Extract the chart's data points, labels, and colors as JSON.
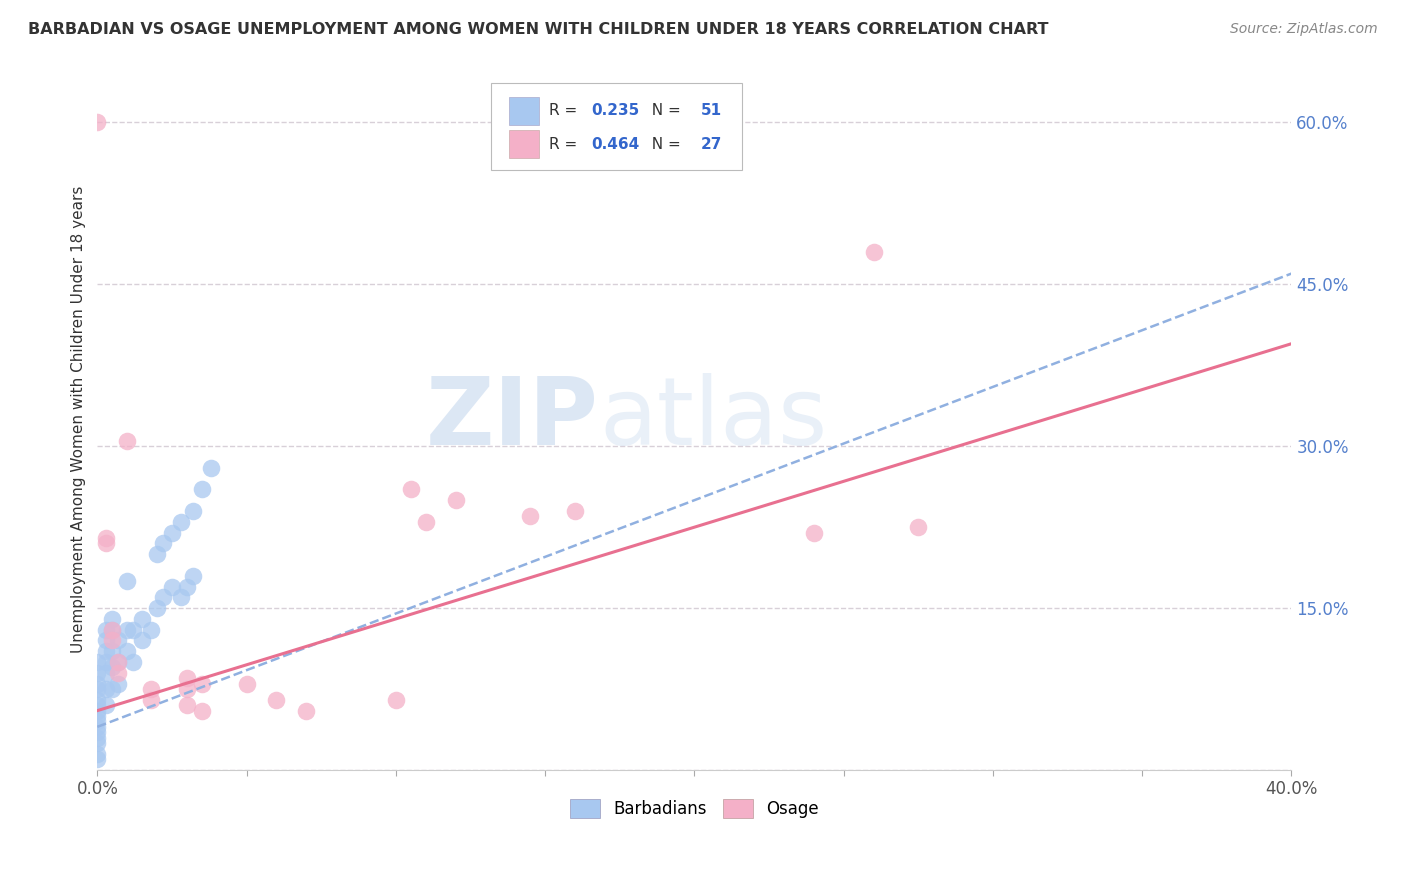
{
  "title": "BARBADIAN VS OSAGE UNEMPLOYMENT AMONG WOMEN WITH CHILDREN UNDER 18 YEARS CORRELATION CHART",
  "source": "Source: ZipAtlas.com",
  "ylabel": "Unemployment Among Women with Children Under 18 years",
  "xlim": [
    0.0,
    0.4
  ],
  "ylim": [
    0.0,
    0.65
  ],
  "xticks": [
    0.0,
    0.05,
    0.1,
    0.15,
    0.2,
    0.25,
    0.3,
    0.35,
    0.4
  ],
  "xticklabels": [
    "0.0%",
    "",
    "",
    "",
    "",
    "",
    "",
    "",
    "40.0%"
  ],
  "yticks_right": [
    0.0,
    0.15,
    0.3,
    0.45,
    0.6
  ],
  "ytick_right_labels": [
    "",
    "15.0%",
    "30.0%",
    "45.0%",
    "60.0%"
  ],
  "watermark_zip": "ZIP",
  "watermark_atlas": "atlas",
  "legend_r1": "0.235",
  "legend_n1": "51",
  "legend_r2": "0.464",
  "legend_n2": "27",
  "legend_bottom_blue": "Barbadians",
  "legend_bottom_pink": "Osage",
  "blue_color": "#A8C8F0",
  "pink_color": "#F4B0C8",
  "blue_edge": "#7090C8",
  "pink_edge": "#E07090",
  "blue_line_color": "#90B0E0",
  "pink_line_color": "#E87090",
  "grid_color": "#D8D0D8",
  "barbadians_x": [
    0.0,
    0.0,
    0.0,
    0.0,
    0.0,
    0.0,
    0.0,
    0.0,
    0.0,
    0.0,
    0.0,
    0.0,
    0.0,
    0.0,
    0.0,
    0.003,
    0.003,
    0.003,
    0.003,
    0.003,
    0.003,
    0.003,
    0.005,
    0.005,
    0.005,
    0.005,
    0.005,
    0.007,
    0.007,
    0.007,
    0.01,
    0.01,
    0.012,
    0.012,
    0.015,
    0.015,
    0.018,
    0.02,
    0.022,
    0.025,
    0.028,
    0.03,
    0.032,
    0.02,
    0.022,
    0.025,
    0.028,
    0.032,
    0.035,
    0.038,
    0.01
  ],
  "barbadians_y": [
    0.1,
    0.09,
    0.08,
    0.075,
    0.065,
    0.06,
    0.055,
    0.05,
    0.045,
    0.04,
    0.035,
    0.03,
    0.025,
    0.015,
    0.01,
    0.13,
    0.12,
    0.11,
    0.1,
    0.09,
    0.075,
    0.06,
    0.14,
    0.13,
    0.11,
    0.095,
    0.075,
    0.12,
    0.1,
    0.08,
    0.13,
    0.11,
    0.13,
    0.1,
    0.14,
    0.12,
    0.13,
    0.15,
    0.16,
    0.17,
    0.16,
    0.17,
    0.18,
    0.2,
    0.21,
    0.22,
    0.23,
    0.24,
    0.26,
    0.28,
    0.175
  ],
  "osage_x": [
    0.0,
    0.003,
    0.003,
    0.005,
    0.005,
    0.007,
    0.007,
    0.01,
    0.018,
    0.018,
    0.03,
    0.03,
    0.03,
    0.035,
    0.035,
    0.05,
    0.06,
    0.07,
    0.1,
    0.105,
    0.11,
    0.12,
    0.145,
    0.16,
    0.24,
    0.26,
    0.275
  ],
  "osage_y": [
    0.6,
    0.215,
    0.21,
    0.13,
    0.12,
    0.1,
    0.09,
    0.305,
    0.075,
    0.065,
    0.085,
    0.075,
    0.06,
    0.08,
    0.055,
    0.08,
    0.065,
    0.055,
    0.065,
    0.26,
    0.23,
    0.25,
    0.235,
    0.24,
    0.22,
    0.48,
    0.225
  ],
  "blue_trend_x": [
    0.0,
    0.4
  ],
  "blue_trend_y": [
    0.04,
    0.46
  ],
  "pink_trend_x": [
    0.0,
    0.4
  ],
  "pink_trend_y": [
    0.055,
    0.395
  ]
}
